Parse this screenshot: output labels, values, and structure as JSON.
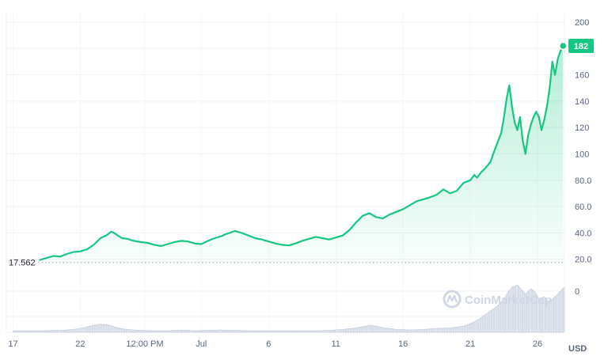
{
  "chart_data": {
    "type": "area",
    "currency": "USD",
    "colors": {
      "line": "#16c784",
      "fill_top": "#16c784",
      "volume": "#cfd6e4",
      "grid": "#eff2f5",
      "badge": "#16c784"
    },
    "grid": true,
    "y_axis": {
      "ticks": [
        {
          "value": 200,
          "label": "200"
        },
        {
          "value": 180,
          "label": ""
        },
        {
          "value": 160,
          "label": "160"
        },
        {
          "value": 140,
          "label": "140"
        },
        {
          "value": 120,
          "label": "120"
        },
        {
          "value": 100,
          "label": "100"
        },
        {
          "value": 80,
          "label": "80.0"
        },
        {
          "value": 60,
          "label": "60.0"
        },
        {
          "value": 40,
          "label": "40.0"
        },
        {
          "value": 20,
          "label": "20.0"
        }
      ],
      "ylim": [
        15,
        200
      ]
    },
    "volume_axis": {
      "ticks": [
        {
          "value": 0,
          "label": "0"
        }
      ]
    },
    "x_axis": {
      "xlim": [
        0,
        41.5
      ],
      "ticks": [
        {
          "x": 0.5,
          "label": "17"
        },
        {
          "x": 5.5,
          "label": "22"
        },
        {
          "x": 10.3,
          "label": "12:00 PM"
        },
        {
          "x": 14.5,
          "label": "Jul"
        },
        {
          "x": 19.5,
          "label": "6"
        },
        {
          "x": 24.5,
          "label": "11"
        },
        {
          "x": 29.5,
          "label": "16"
        },
        {
          "x": 34.5,
          "label": "21"
        },
        {
          "x": 39.5,
          "label": "26"
        }
      ]
    },
    "start_price": {
      "value": 17.56,
      "label": "17.562"
    },
    "current_price": {
      "value": 182,
      "label": "182"
    },
    "watermark": "CoinMarketCap",
    "price_series": {
      "x": [
        2.5,
        3,
        3.5,
        4,
        4.5,
        5,
        5.5,
        6,
        6.5,
        7,
        7.5,
        7.8,
        8,
        8.3,
        8.6,
        9,
        9.5,
        10,
        10.5,
        11,
        11.5,
        12,
        12.5,
        13,
        13.5,
        14,
        14.5,
        15,
        15.5,
        16,
        16.3,
        16.6,
        17,
        17.5,
        18,
        18.5,
        19,
        19.5,
        20,
        20.5,
        21,
        21.5,
        22,
        22.5,
        23,
        23.5,
        24,
        24.5,
        25,
        25.5,
        26,
        26.5,
        27,
        27.5,
        28,
        28.5,
        29,
        29.5,
        30,
        30.5,
        31,
        31.5,
        32,
        32.5,
        33,
        33.5,
        34,
        34.5,
        34.8,
        35,
        35.3,
        35.6,
        36,
        36.2,
        36.5,
        36.8,
        37,
        37.2,
        37.4,
        37.6,
        37.8,
        38,
        38.2,
        38.4,
        38.6,
        38.8,
        39,
        39.2,
        39.4,
        39.6,
        39.8,
        40,
        40.2,
        40.4,
        40.6,
        40.8,
        41,
        41.2,
        41.4
      ],
      "y": [
        19.5,
        21,
        22.5,
        22,
        24,
        25.5,
        26,
        27.5,
        31,
        36,
        38.5,
        41,
        40,
        38,
        36,
        35.5,
        34,
        33,
        32.5,
        31,
        30,
        31.5,
        33,
        34,
        33.5,
        32,
        31.5,
        34,
        36,
        37.5,
        39,
        40,
        41.5,
        40,
        38,
        36,
        35,
        33.5,
        32,
        31,
        30.5,
        32,
        34,
        35.5,
        37,
        36,
        35,
        36.5,
        38,
        42,
        48,
        53,
        55,
        52,
        51,
        54,
        56,
        58,
        61,
        64,
        65.5,
        67,
        69,
        73,
        70,
        72,
        78,
        80,
        84,
        82,
        86,
        89,
        94,
        100,
        108,
        116,
        128,
        142,
        152,
        136,
        124,
        118,
        128,
        110,
        100,
        114,
        122,
        128,
        132,
        128,
        118,
        126,
        136,
        150,
        170,
        160,
        172,
        178,
        182
      ]
    },
    "volume_series": {
      "x": [
        0.5,
        2.5,
        4,
        5,
        5.8,
        6.5,
        7,
        7.5,
        8,
        8.5,
        9,
        9.5,
        10,
        11,
        12,
        12.5,
        13,
        13.5,
        14,
        15,
        16,
        17,
        18,
        19,
        20,
        21,
        22,
        23,
        24,
        25,
        26,
        26.5,
        27,
        27.5,
        28,
        28.5,
        29,
        30,
        31,
        32,
        33,
        33.5,
        34,
        34.5,
        35,
        35.5,
        36,
        36.5,
        37,
        37.3,
        37.6,
        38,
        38.3,
        38.6,
        39,
        39.3,
        39.6,
        40,
        40.3,
        40.6,
        41,
        41.3,
        41.5
      ],
      "y": [
        0.03,
        0.03,
        0.04,
        0.06,
        0.1,
        0.15,
        0.17,
        0.16,
        0.12,
        0.08,
        0.06,
        0.05,
        0.04,
        0.03,
        0.03,
        0.04,
        0.05,
        0.04,
        0.03,
        0.04,
        0.05,
        0.04,
        0.03,
        0.03,
        0.03,
        0.03,
        0.03,
        0.03,
        0.04,
        0.06,
        0.09,
        0.12,
        0.15,
        0.13,
        0.1,
        0.08,
        0.06,
        0.05,
        0.06,
        0.08,
        0.09,
        0.11,
        0.13,
        0.18,
        0.25,
        0.35,
        0.45,
        0.55,
        0.7,
        0.85,
        0.95,
        1.0,
        0.9,
        0.8,
        0.92,
        0.85,
        0.7,
        0.75,
        0.65,
        0.7,
        0.8,
        0.9,
        0.95
      ]
    }
  }
}
